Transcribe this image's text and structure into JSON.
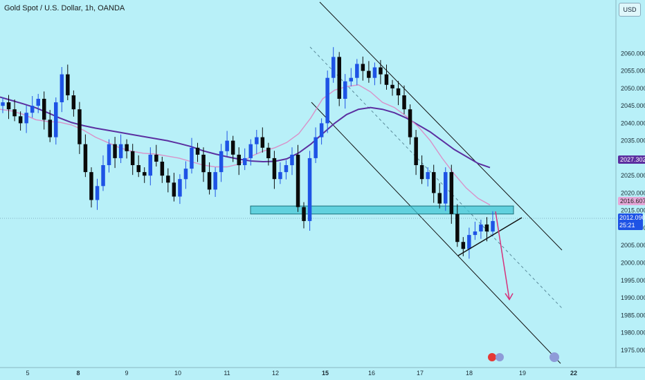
{
  "header": {
    "title": "Gold Spot / U.S. Dollar, 1h, OANDA"
  },
  "currency_button": "USD",
  "price_tags": {
    "ma_slow": {
      "value": "2027.302",
      "color": "#5b2fa0"
    },
    "ma_fast": {
      "value": "2016.607",
      "color": "#e6a8d8"
    },
    "last": {
      "value": "2012.090",
      "timer": "25:21",
      "color": "#1e53e5"
    }
  },
  "chart_data": {
    "type": "line",
    "title": "Gold Spot / U.S. Dollar, 1h, OANDA",
    "ylim": [
      1972,
      2066
    ],
    "y_ticks": [
      "2060.000",
      "2055.000",
      "2050.000",
      "2045.000",
      "2040.000",
      "2035.000",
      "2030.000",
      "2025.000",
      "2020.000",
      "2015.000",
      "2010.000",
      "2005.000",
      "2000.000",
      "1995.000",
      "1990.000",
      "1985.000",
      "1980.000",
      "1975.000"
    ],
    "x_ticks": [
      "5",
      "8",
      "9",
      "10",
      "11",
      "12",
      "15",
      "16",
      "17",
      "18",
      "19",
      "22"
    ],
    "grid": false,
    "series": [
      {
        "values": [
          2046,
          2044,
          2042,
          2040,
          2043,
          2045,
          2047,
          2041,
          2036,
          2046,
          2054,
          2048,
          2044,
          2034,
          2026,
          2018,
          2022,
          2028,
          2034,
          2030,
          2034,
          2032,
          2028,
          2026,
          2025,
          2031,
          2029,
          2025,
          2023,
          2019,
          2024,
          2027,
          2033,
          2031,
          2026,
          2021,
          2026,
          2032,
          2035,
          2031,
          2028,
          2030,
          2034,
          2036,
          2033,
          2030,
          2024,
          2026,
          2028,
          2031,
          2016,
          2012,
          2030,
          2036,
          2040,
          2053,
          2059,
          2047,
          2052,
          2053,
          2057,
          2055,
          2053,
          2056,
          2054,
          2051,
          2050,
          2048,
          2044,
          2036,
          2028,
          2024,
          2026,
          2020,
          2017,
          2026,
          2014,
          2006,
          2004,
          2008,
          2009,
          2011,
          2009,
          2012
        ]
      },
      {
        "values": [
          2047.5,
          2046.5,
          2045.5,
          2044.4,
          2043,
          2041.5,
          2040.2,
          2039.3,
          2038.6,
          2038,
          2037.4,
          2036.8,
          2036.2,
          2035.6,
          2035,
          2034.2,
          2033.3,
          2032.1,
          2031.2,
          2030.4,
          2029.7,
          2029.2,
          2029,
          2029.1,
          2029.8,
          2031.5,
          2034,
          2037,
          2040,
          2042.5,
          2044,
          2044.5,
          2044,
          2043,
          2041.5,
          2039.5,
          2037.5,
          2035,
          2032.5,
          2030.5,
          2028.5,
          2027.3
        ]
      },
      {
        "values": [
          2044,
          2043.5,
          2042.5,
          2041,
          2040.5,
          2040.3,
          2039.5,
          2038,
          2036,
          2034.5,
          2033,
          2032,
          2031.4,
          2031.2,
          2030.6,
          2030,
          2029,
          2028,
          2027.5,
          2027.5,
          2028.3,
          2030.5,
          2032,
          2033,
          2034.5,
          2037,
          2041.5,
          2047,
          2049.5,
          2050.5,
          2051,
          2049,
          2046,
          2044.5,
          2042,
          2039,
          2035,
          2030,
          2025.5,
          2021.5,
          2018.5,
          2016.6
        ]
      }
    ],
    "annotations": {
      "support_zone": [
        2014,
        2016.3
      ],
      "last_price": 2012.09,
      "projection_target": 1989.5
    }
  }
}
